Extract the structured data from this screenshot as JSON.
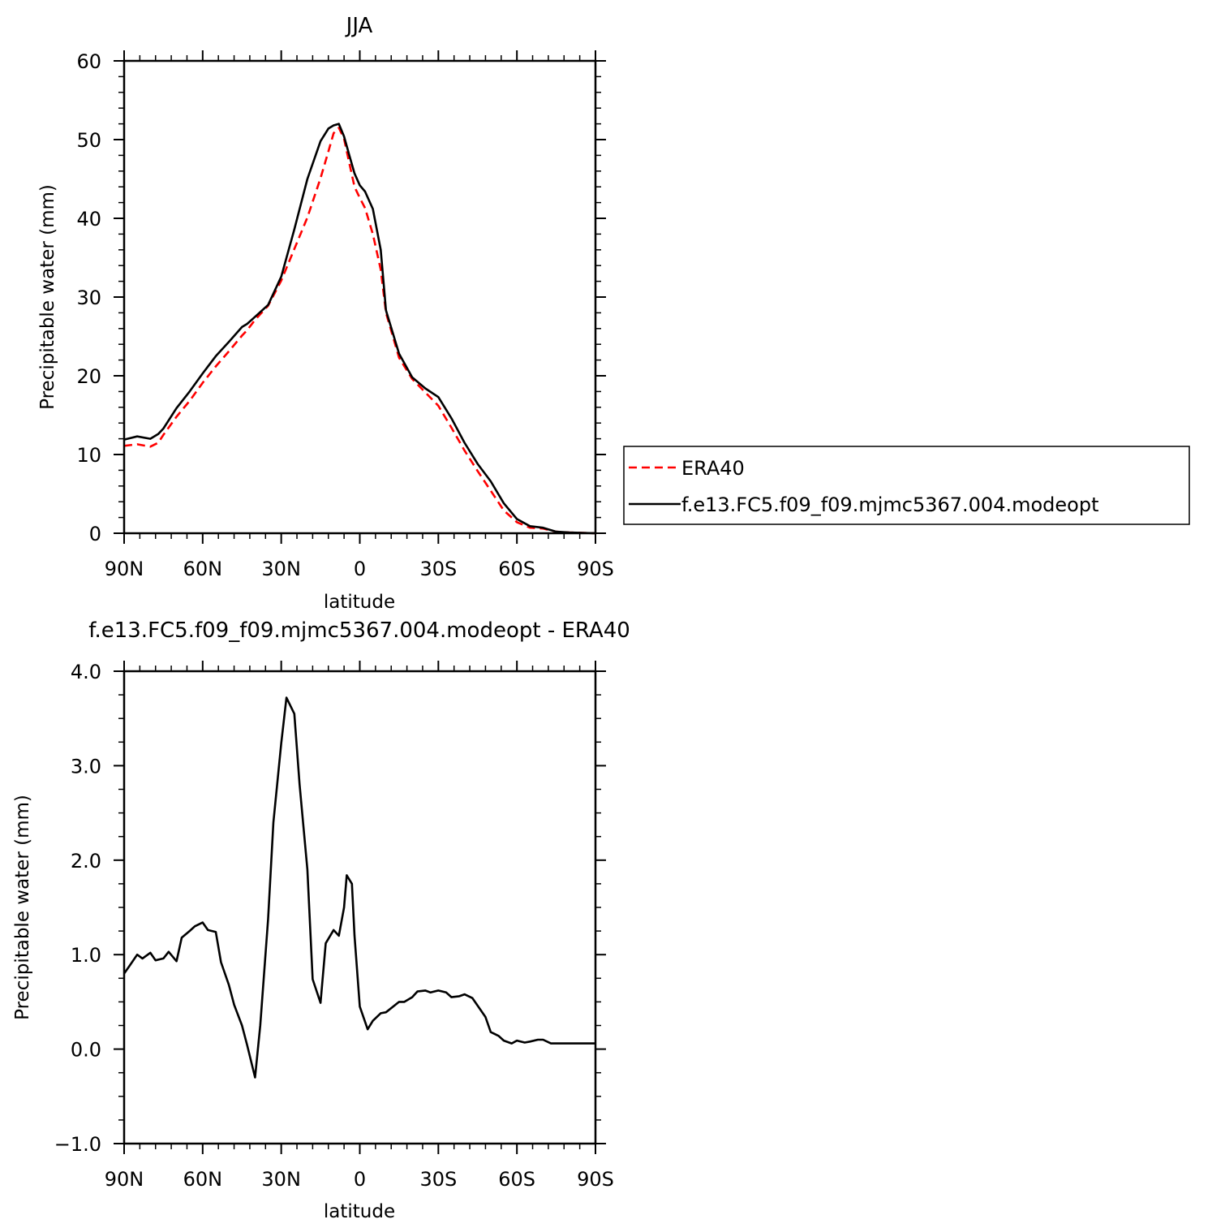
{
  "chart_data": [
    {
      "type": "line",
      "title": "JJA",
      "xlabel": "latitude",
      "ylabel": "Precipitable water (mm)",
      "xlim": [
        90,
        -90
      ],
      "ylim": [
        0,
        60
      ],
      "x_ticks": [
        90,
        60,
        30,
        0,
        -30,
        -60,
        -90
      ],
      "x_tick_labels": [
        "90N",
        "60N",
        "30N",
        "0",
        "30S",
        "60S",
        "90S"
      ],
      "y_ticks": [
        0,
        10,
        20,
        30,
        40,
        50,
        60
      ],
      "y_tick_labels": [
        "0",
        "10",
        "20",
        "30",
        "40",
        "50",
        "60"
      ],
      "grid": false,
      "legend_position": "right",
      "series": [
        {
          "name": "ERA40",
          "color": "#ff0000",
          "style": "dashed",
          "x": [
            90,
            85,
            80,
            77,
            75,
            70,
            65,
            60,
            55,
            50,
            45,
            43,
            40,
            35,
            30,
            25,
            20,
            15,
            12,
            10,
            8,
            6,
            4,
            2,
            0,
            -2,
            -5,
            -8,
            -10,
            -15,
            -20,
            -25,
            -30,
            -35,
            -40,
            -45,
            -50,
            -55,
            -60,
            -65,
            -70,
            -75,
            -80,
            -85,
            -90
          ],
          "y": [
            11.1,
            11.3,
            11.0,
            11.5,
            12.5,
            14.8,
            16.8,
            19.1,
            21.2,
            23.1,
            25.1,
            25.8,
            27.1,
            28.9,
            32.1,
            36.1,
            40.1,
            45.1,
            48.5,
            50.8,
            51.5,
            50.1,
            47.0,
            44.0,
            42.6,
            41.3,
            38.0,
            33.5,
            28.0,
            22.3,
            19.6,
            17.9,
            16.2,
            13.4,
            10.5,
            7.9,
            5.4,
            2.9,
            1.4,
            0.7,
            0.6,
            0.2,
            0.1,
            0.05,
            0.0
          ]
        },
        {
          "name": "f.e13.FC5.f09_f09.mjmc5367.004.modeopt",
          "color": "#000000",
          "style": "solid",
          "x": [
            90,
            85,
            80,
            77,
            75,
            70,
            65,
            60,
            55,
            50,
            45,
            43,
            40,
            35,
            30,
            25,
            20,
            15,
            12,
            10,
            8,
            6,
            4,
            2,
            0,
            -2,
            -5,
            -8,
            -10,
            -15,
            -20,
            -25,
            -30,
            -35,
            -40,
            -45,
            -50,
            -55,
            -60,
            -65,
            -70,
            -75,
            -80,
            -85,
            -90
          ],
          "y": [
            11.9,
            12.3,
            12.0,
            12.6,
            13.3,
            15.9,
            18.0,
            20.3,
            22.5,
            24.3,
            26.2,
            26.6,
            27.5,
            29.0,
            32.6,
            38.6,
            45.0,
            49.8,
            51.4,
            51.8,
            52.0,
            50.4,
            48.0,
            45.7,
            44.2,
            43.4,
            41.2,
            36.0,
            28.3,
            22.8,
            19.8,
            18.4,
            17.3,
            14.6,
            11.5,
            8.8,
            6.6,
            3.8,
            1.8,
            0.9,
            0.7,
            0.2,
            0.1,
            0.05,
            0.0
          ]
        }
      ],
      "legend": [
        "ERA40",
        "f.e13.FC5.f09_f09.mjmc5367.004.modeopt"
      ]
    },
    {
      "type": "line",
      "title": "f.e13.FC5.f09_f09.mjmc5367.004.modeopt - ERA40",
      "xlabel": "latitude",
      "ylabel": "Precipitable water (mm)",
      "xlim": [
        90,
        -90
      ],
      "ylim": [
        -1.0,
        4.0
      ],
      "x_ticks": [
        90,
        60,
        30,
        0,
        -30,
        -60,
        -90
      ],
      "x_tick_labels": [
        "90N",
        "60N",
        "30N",
        "0",
        "30S",
        "60S",
        "90S"
      ],
      "y_ticks": [
        -1.0,
        0.0,
        1.0,
        2.0,
        3.0,
        4.0
      ],
      "y_tick_labels": [
        "−1.0",
        "0.0",
        "1.0",
        "2.0",
        "3.0",
        "4.0"
      ],
      "grid": false,
      "series": [
        {
          "color": "#000000",
          "style": "solid",
          "x": [
            90,
            88,
            85,
            83,
            80,
            78,
            75,
            73,
            70,
            68,
            65,
            63,
            60,
            58,
            55,
            53,
            50,
            48,
            45,
            43,
            40,
            38,
            35,
            33,
            30,
            28,
            25,
            23,
            20,
            18,
            15,
            13,
            10,
            8,
            6,
            5,
            3,
            2,
            0,
            -3,
            -5,
            -8,
            -10,
            -15,
            -17,
            -20,
            -22,
            -25,
            -27,
            -30,
            -33,
            -35,
            -38,
            -40,
            -43,
            -45,
            -48,
            -50,
            -53,
            -55,
            -58,
            -60,
            -63,
            -65,
            -68,
            -70,
            -73,
            -75,
            -78,
            -80,
            -83,
            -85,
            -88,
            -90
          ],
          "y": [
            0.8,
            0.88,
            1.0,
            0.96,
            1.02,
            0.94,
            0.96,
            1.03,
            0.93,
            1.18,
            1.25,
            1.3,
            1.34,
            1.26,
            1.24,
            0.92,
            0.68,
            0.47,
            0.25,
            0.04,
            -0.3,
            0.25,
            1.38,
            2.4,
            3.24,
            3.72,
            3.55,
            2.8,
            1.9,
            0.74,
            0.49,
            1.12,
            1.26,
            1.2,
            1.5,
            1.84,
            1.75,
            1.2,
            0.45,
            0.21,
            0.3,
            0.38,
            0.39,
            0.5,
            0.5,
            0.55,
            0.61,
            0.62,
            0.6,
            0.62,
            0.6,
            0.55,
            0.56,
            0.58,
            0.54,
            0.46,
            0.34,
            0.18,
            0.14,
            0.09,
            0.06,
            0.09,
            0.07,
            0.08,
            0.1,
            0.1,
            0.06,
            0.06,
            0.06,
            0.06,
            0.06,
            0.06,
            0.06,
            0.06
          ]
        }
      ]
    }
  ]
}
